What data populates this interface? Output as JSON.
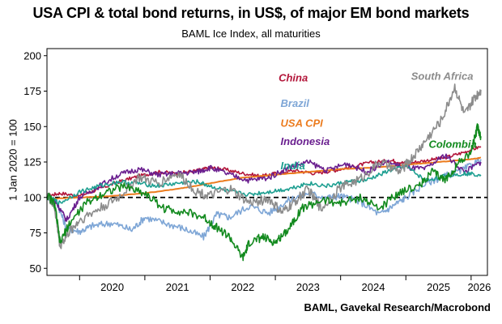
{
  "chart_data": {
    "type": "line",
    "title": "USA CPI & total bond returns, in US$, of major EM bond markets",
    "subtitle": "BAML Ice Index, all maturities",
    "ylabel": "1 Jan 2020 = 100",
    "source": "BAML, Gavekal Research/Macrobond",
    "ylim": [
      45,
      205
    ],
    "yticks": [
      50,
      75,
      100,
      125,
      150,
      175,
      200
    ],
    "xlim": [
      2019.5,
      2026.25
    ],
    "xticks": [
      "2020",
      "2021",
      "2022",
      "2023",
      "2024",
      "2025",
      "2026"
    ],
    "reference_line": 100,
    "series": [
      {
        "name": "China",
        "color": "#b3163a",
        "x": [
          2019.5,
          2019.7,
          2020.0,
          2020.3,
          2020.6,
          2020.9,
          2021.2,
          2021.5,
          2021.8,
          2022.0,
          2022.2,
          2022.5,
          2022.8,
          2023.0,
          2023.3,
          2023.6,
          2023.9,
          2024.2,
          2024.5,
          2024.8,
          2025.0,
          2025.3,
          2025.6,
          2025.9,
          2026.15
        ],
        "y": [
          101,
          103,
          101,
          106,
          111,
          115,
          118,
          117,
          119,
          121,
          120,
          117,
          115,
          117,
          119,
          117,
          119,
          122,
          125,
          126,
          124,
          126,
          128,
          132,
          136
        ]
      },
      {
        "name": "Brazil",
        "color": "#7ea6d6",
        "x": [
          2019.5,
          2019.65,
          2019.8,
          2020.0,
          2020.2,
          2020.5,
          2020.8,
          2021.0,
          2021.3,
          2021.6,
          2021.9,
          2022.1,
          2022.3,
          2022.6,
          2022.9,
          2023.2,
          2023.5,
          2023.8,
          2024.0,
          2024.3,
          2024.6,
          2024.8,
          2025.0,
          2025.3,
          2025.6,
          2025.9,
          2026.15
        ],
        "y": [
          101,
          97,
          78,
          76,
          80,
          82,
          77,
          86,
          82,
          78,
          72,
          88,
          86,
          94,
          89,
          98,
          103,
          100,
          101,
          97,
          88,
          94,
          100,
          110,
          115,
          120,
          127
        ]
      },
      {
        "name": "USA CPI",
        "color": "#ec7c1f",
        "x": [
          2019.5,
          2020.0,
          2020.5,
          2021.0,
          2021.5,
          2022.0,
          2022.5,
          2023.0,
          2023.5,
          2024.0,
          2024.5,
          2025.0,
          2025.5,
          2026.0,
          2026.15
        ],
        "y": [
          99,
          100,
          101,
          103,
          106,
          110,
          114,
          116,
          118,
          120,
          121,
          123,
          125,
          127,
          128
        ]
      },
      {
        "name": "Indonesia",
        "color": "#6a1f8f",
        "x": [
          2019.5,
          2019.65,
          2019.8,
          2020.0,
          2020.3,
          2020.6,
          2020.9,
          2021.2,
          2021.5,
          2021.8,
          2022.0,
          2022.3,
          2022.6,
          2022.9,
          2023.2,
          2023.5,
          2023.8,
          2024.1,
          2024.4,
          2024.7,
          2025.0,
          2025.3,
          2025.6,
          2025.9,
          2026.15
        ],
        "y": [
          102,
          96,
          84,
          100,
          108,
          116,
          120,
          116,
          117,
          118,
          121,
          116,
          112,
          114,
          121,
          125,
          119,
          124,
          118,
          125,
          121,
          120,
          130,
          118,
          125
        ]
      },
      {
        "name": "India",
        "color": "#1e9f91",
        "x": [
          2019.5,
          2019.7,
          2020.0,
          2020.3,
          2020.6,
          2020.9,
          2021.2,
          2021.5,
          2021.8,
          2022.0,
          2022.3,
          2022.6,
          2022.9,
          2023.2,
          2023.5,
          2023.8,
          2024.1,
          2024.4,
          2024.7,
          2025.0,
          2025.3,
          2025.6,
          2025.9,
          2026.15
        ],
        "y": [
          101,
          96,
          104,
          108,
          111,
          110,
          108,
          110,
          111,
          108,
          104,
          102,
          104,
          106,
          110,
          108,
          111,
          112,
          118,
          122,
          112,
          115,
          117,
          116
        ]
      },
      {
        "name": "South Africa",
        "color": "#8c8c8c",
        "x": [
          2019.5,
          2019.62,
          2019.7,
          2019.85,
          2020.0,
          2020.3,
          2020.6,
          2020.9,
          2021.2,
          2021.5,
          2021.8,
          2022.0,
          2022.3,
          2022.6,
          2022.9,
          2023.1,
          2023.3,
          2023.5,
          2023.7,
          2024.0,
          2024.3,
          2024.6,
          2024.9,
          2025.1,
          2025.3,
          2025.55,
          2025.75,
          2025.9,
          2026.05,
          2026.15
        ],
        "y": [
          103,
          92,
          66,
          76,
          84,
          92,
          100,
          114,
          110,
          117,
          104,
          101,
          106,
          96,
          99,
          89,
          97,
          106,
          92,
          107,
          113,
          125,
          118,
          128,
          140,
          155,
          178,
          158,
          170,
          176
        ]
      },
      {
        "name": "Colombia",
        "color": "#128a1e",
        "x": [
          2019.5,
          2019.62,
          2019.7,
          2019.85,
          2020.1,
          2020.4,
          2020.7,
          2021.0,
          2021.3,
          2021.6,
          2021.9,
          2022.1,
          2022.3,
          2022.5,
          2022.6,
          2022.8,
          2023.0,
          2023.2,
          2023.4,
          2023.7,
          2024.0,
          2024.3,
          2024.6,
          2024.9,
          2025.2,
          2025.4,
          2025.6,
          2025.8,
          2026.0,
          2026.1,
          2026.15
        ],
        "y": [
          102,
          95,
          68,
          82,
          96,
          104,
          108,
          103,
          92,
          90,
          86,
          79,
          72,
          57,
          68,
          72,
          68,
          78,
          92,
          98,
          96,
          100,
          92,
          104,
          108,
          118,
          112,
          124,
          132,
          150,
          142
        ]
      }
    ],
    "labels": [
      {
        "series": "China",
        "x": 2023.05,
        "y": 182
      },
      {
        "series": "Brazil",
        "x": 2023.08,
        "y": 164
      },
      {
        "series": "USA CPI",
        "x": 2023.08,
        "y": 150
      },
      {
        "series": "Indonesia",
        "x": 2023.08,
        "y": 137
      },
      {
        "series": "India",
        "x": 2023.08,
        "y": 120
      },
      {
        "series": "South Africa",
        "x": 2025.08,
        "y": 183
      },
      {
        "series": "Colombia",
        "x": 2025.35,
        "y": 135
      }
    ]
  }
}
